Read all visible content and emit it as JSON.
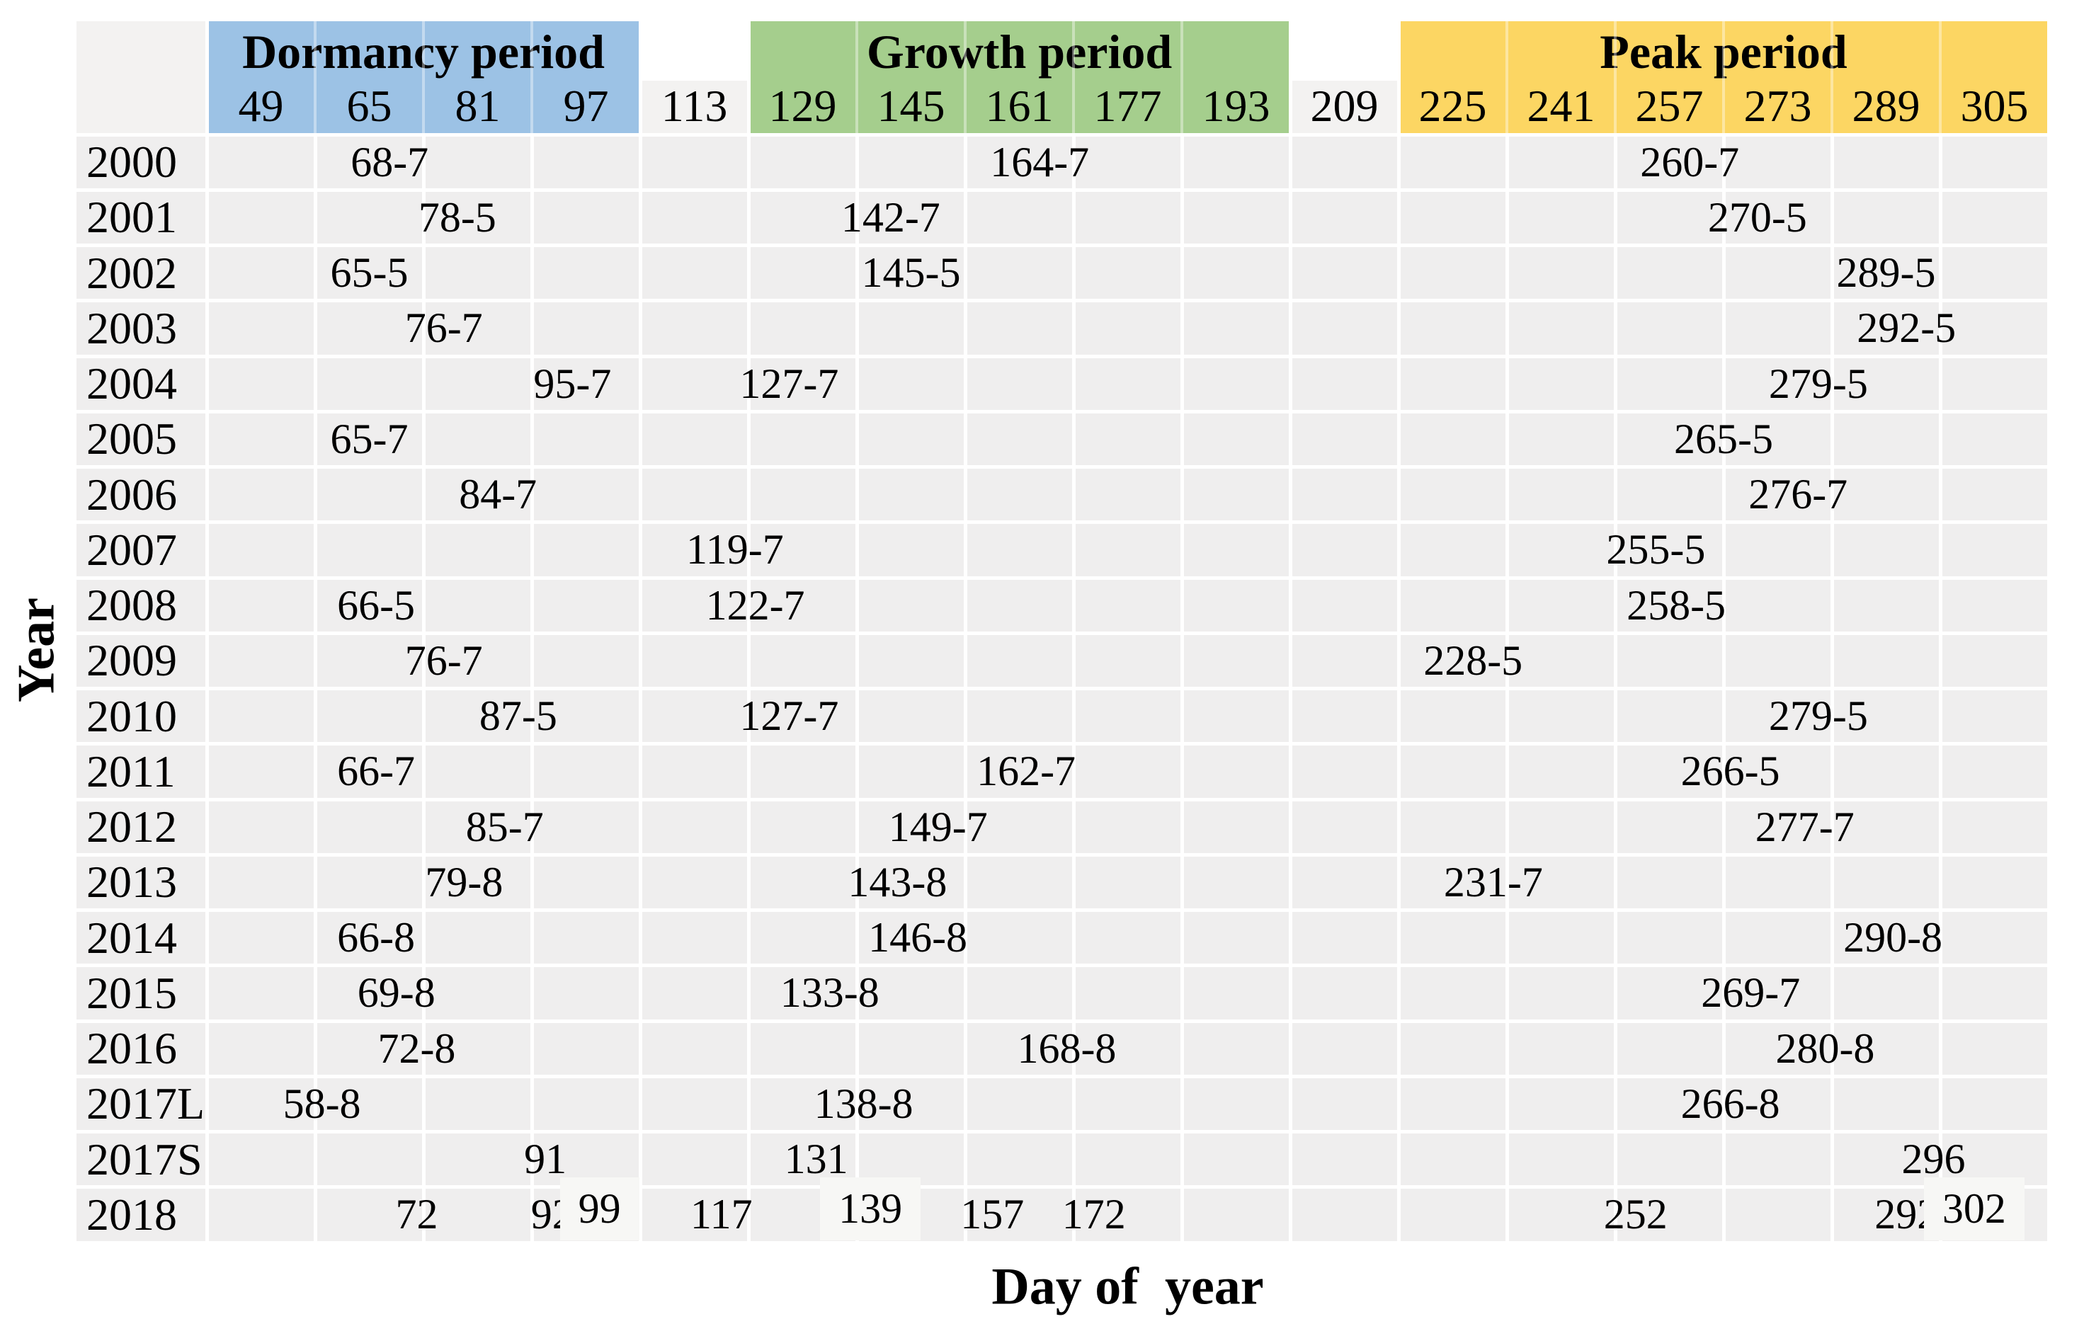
{
  "axes": {
    "x_label": "Day of  year",
    "y_label": "Year"
  },
  "colors": {
    "dormancy": "#9cc2e5",
    "growth": "#a5ce8d",
    "peak": "#fcd663",
    "cell": "#efeeee",
    "header_cell": "#f3f2f1",
    "label_box": "#f7f7f5",
    "grid_line": "#ffffff",
    "text": "#000000"
  },
  "chart_data": {
    "type": "table",
    "title": "",
    "xlabel": "Day of year",
    "ylabel": "Year",
    "x_bin_size_days": 16,
    "x_tick_labels": [
      49,
      65,
      81,
      97,
      113,
      129,
      145,
      161,
      177,
      193,
      209,
      225,
      241,
      257,
      273,
      289,
      305
    ],
    "period_bands": [
      {
        "label": "Dormancy period",
        "from_day": 49,
        "to_day": 97,
        "color_key": "dormancy"
      },
      {
        "label": "Growth period",
        "from_day": 129,
        "to_day": 193,
        "color_key": "growth"
      },
      {
        "label": "Peak period",
        "from_day": 225,
        "to_day": 305,
        "color_key": "peak"
      }
    ],
    "rows": [
      {
        "year": "2000",
        "entries": [
          {
            "day": 68,
            "label": "68-7"
          },
          {
            "day": 164,
            "label": "164-7"
          },
          {
            "day": 260,
            "label": "260-7"
          }
        ]
      },
      {
        "year": "2001",
        "entries": [
          {
            "day": 78,
            "label": "78-5"
          },
          {
            "day": 142,
            "label": "142-7"
          },
          {
            "day": 270,
            "label": "270-5"
          }
        ]
      },
      {
        "year": "2002",
        "entries": [
          {
            "day": 65,
            "label": "65-5"
          },
          {
            "day": 145,
            "label": "145-5"
          },
          {
            "day": 289,
            "label": "289-5"
          }
        ]
      },
      {
        "year": "2003",
        "entries": [
          {
            "day": 76,
            "label": "76-7"
          },
          {
            "day": 292,
            "label": "292-5"
          }
        ]
      },
      {
        "year": "2004",
        "entries": [
          {
            "day": 95,
            "label": "95-7"
          },
          {
            "day": 127,
            "label": "127-7"
          },
          {
            "day": 279,
            "label": "279-5"
          }
        ]
      },
      {
        "year": "2005",
        "entries": [
          {
            "day": 65,
            "label": "65-7"
          },
          {
            "day": 265,
            "label": "265-5"
          }
        ]
      },
      {
        "year": "2006",
        "entries": [
          {
            "day": 84,
            "label": "84-7"
          },
          {
            "day": 276,
            "label": "276-7"
          }
        ]
      },
      {
        "year": "2007",
        "entries": [
          {
            "day": 119,
            "label": "119-7"
          },
          {
            "day": 255,
            "label": "255-5"
          }
        ]
      },
      {
        "year": "2008",
        "entries": [
          {
            "day": 66,
            "label": "66-5"
          },
          {
            "day": 122,
            "label": "122-7"
          },
          {
            "day": 258,
            "label": "258-5"
          }
        ]
      },
      {
        "year": "2009",
        "entries": [
          {
            "day": 76,
            "label": "76-7"
          },
          {
            "day": 228,
            "label": "228-5"
          }
        ]
      },
      {
        "year": "2010",
        "entries": [
          {
            "day": 87,
            "label": "87-5"
          },
          {
            "day": 127,
            "label": "127-7"
          },
          {
            "day": 279,
            "label": "279-5"
          }
        ]
      },
      {
        "year": "2011",
        "entries": [
          {
            "day": 66,
            "label": "66-7"
          },
          {
            "day": 162,
            "label": "162-7"
          },
          {
            "day": 266,
            "label": "266-5"
          }
        ]
      },
      {
        "year": "2012",
        "entries": [
          {
            "day": 85,
            "label": "85-7"
          },
          {
            "day": 149,
            "label": "149-7"
          },
          {
            "day": 277,
            "label": "277-7"
          }
        ]
      },
      {
        "year": "2013",
        "entries": [
          {
            "day": 79,
            "label": "79-8"
          },
          {
            "day": 143,
            "label": "143-8"
          },
          {
            "day": 231,
            "label": "231-7"
          }
        ]
      },
      {
        "year": "2014",
        "entries": [
          {
            "day": 66,
            "label": "66-8"
          },
          {
            "day": 146,
            "label": "146-8"
          },
          {
            "day": 290,
            "label": "290-8"
          }
        ]
      },
      {
        "year": "2015",
        "entries": [
          {
            "day": 69,
            "label": "69-8"
          },
          {
            "day": 133,
            "label": "133-8"
          },
          {
            "day": 269,
            "label": "269-7"
          }
        ]
      },
      {
        "year": "2016",
        "entries": [
          {
            "day": 72,
            "label": "72-8"
          },
          {
            "day": 168,
            "label": "168-8"
          },
          {
            "day": 280,
            "label": "280-8"
          }
        ]
      },
      {
        "year": "2017L",
        "entries": [
          {
            "day": 58,
            "label": "58-8"
          },
          {
            "day": 138,
            "label": "138-8"
          },
          {
            "day": 266,
            "label": "266-8"
          }
        ]
      },
      {
        "year": "2017S",
        "entries": [
          {
            "day": 91,
            "label": "91"
          },
          {
            "day": 131,
            "label": "131"
          },
          {
            "day": 296,
            "label": "296"
          }
        ]
      },
      {
        "year": "2018",
        "entries": [
          {
            "day": 72,
            "label": "72"
          },
          {
            "day": 92,
            "label": "92"
          },
          {
            "day": 99,
            "label": "99",
            "highlight_box": true
          },
          {
            "day": 117,
            "label": "117"
          },
          {
            "day": 139,
            "label": "139",
            "highlight_box": true
          },
          {
            "day": 157,
            "label": "157"
          },
          {
            "day": 172,
            "label": "172"
          },
          {
            "day": 252,
            "label": "252"
          },
          {
            "day": 292,
            "label": "292"
          },
          {
            "day": 302,
            "label": "302",
            "highlight_box": true
          }
        ]
      }
    ]
  }
}
